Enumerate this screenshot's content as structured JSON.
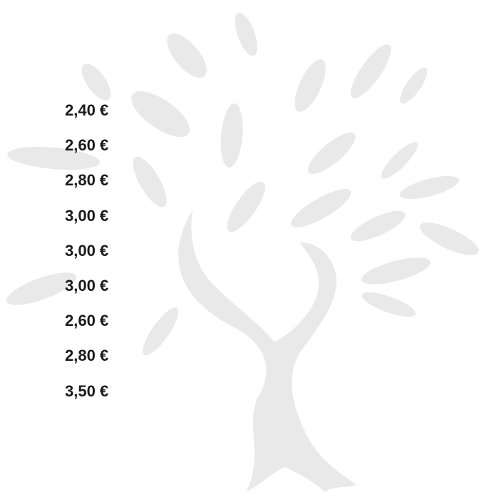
{
  "prices": [
    "2,40 €",
    "2,60 €",
    "2,80 €",
    "3,00 €",
    "3,00 €",
    "3,00 €",
    "2,60 €",
    "2,80 €",
    "3,50 €"
  ]
}
